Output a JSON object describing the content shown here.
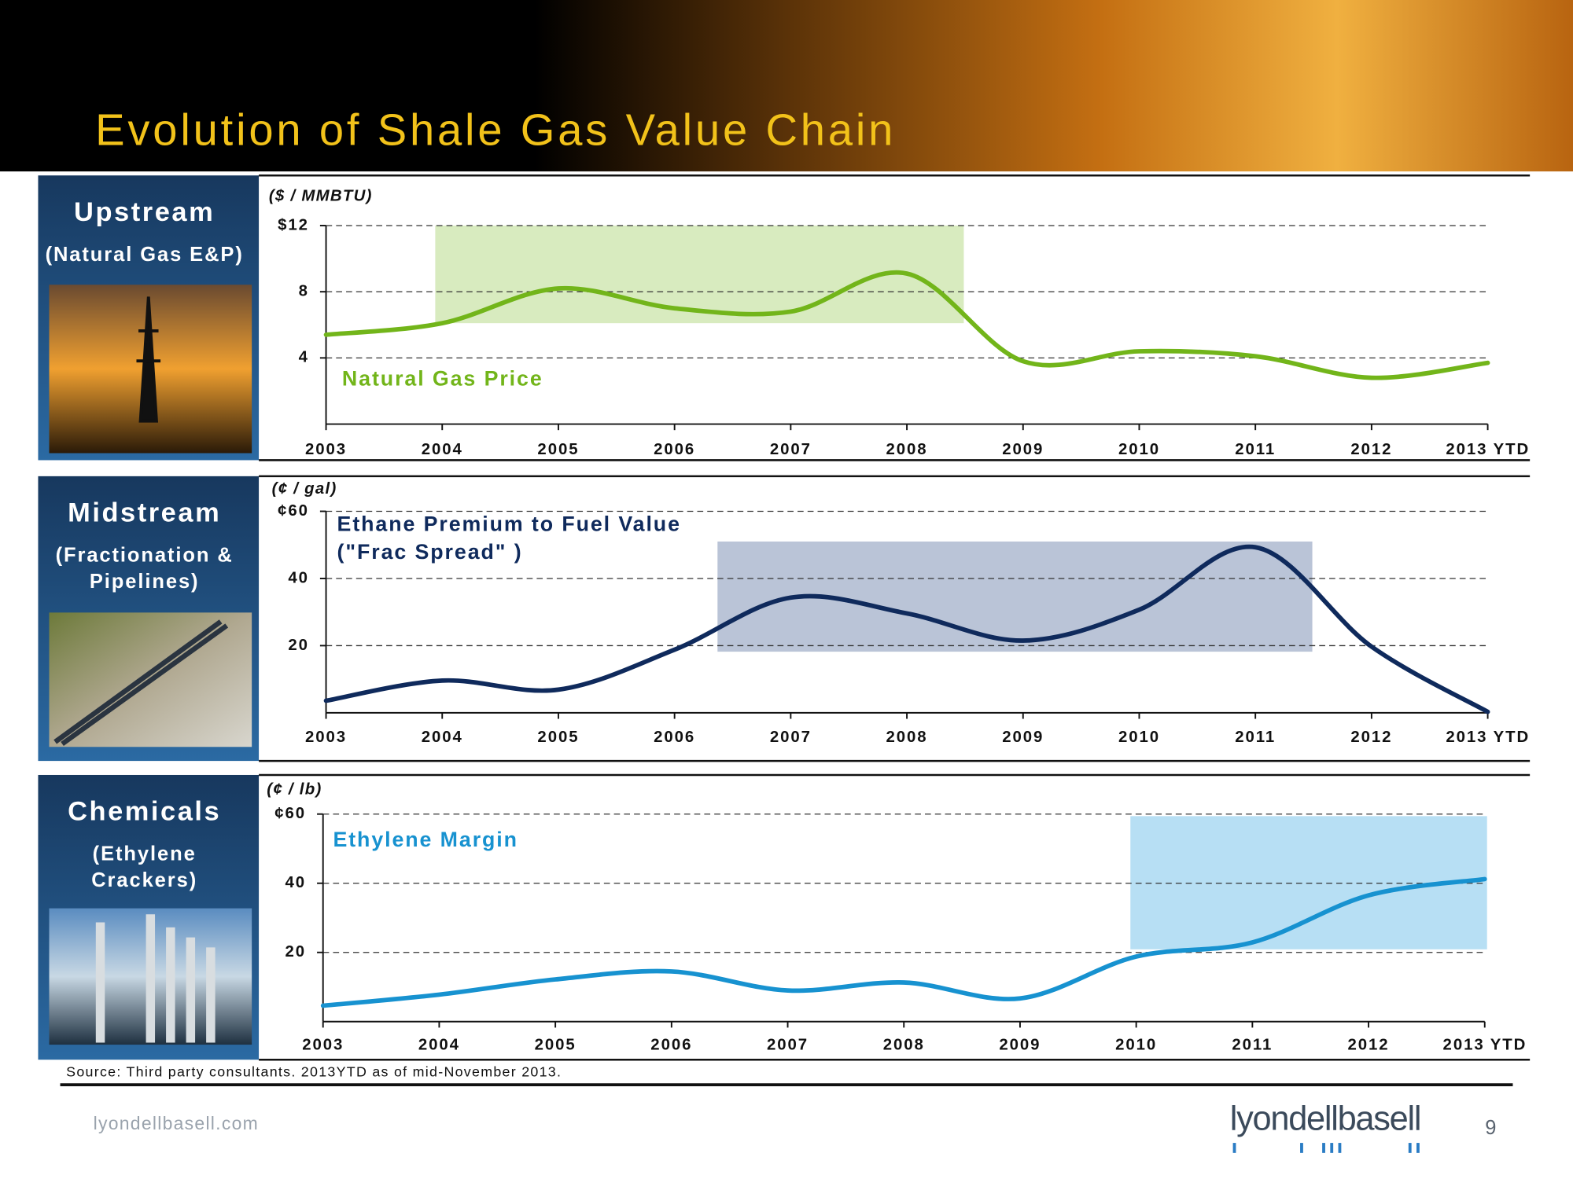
{
  "header": {
    "title": "Evolution of Shale Gas Value Chain"
  },
  "panels": [
    {
      "title": "Upstream",
      "subtitle": [
        "(Natural Gas E&P)"
      ]
    },
    {
      "title": "Midstream",
      "subtitle": [
        "(Fractionation &",
        "Pipelines)"
      ]
    },
    {
      "title": "Chemicals",
      "subtitle": [
        "(Ethylene",
        "Crackers)"
      ]
    }
  ],
  "chart_data": [
    {
      "type": "line",
      "unit_label": "($ / MMBTU)",
      "categories": [
        "2003",
        "2004",
        "2005",
        "2006",
        "2007",
        "2008",
        "2009",
        "2010",
        "2011",
        "2012",
        "2013 YTD"
      ],
      "series": [
        {
          "name": "Natural Gas Price",
          "color": "#72b51a",
          "values": [
            5.4,
            6.1,
            8.2,
            7.0,
            6.8,
            9.1,
            3.8,
            4.4,
            4.1,
            2.8,
            3.7
          ]
        }
      ],
      "ylim": [
        0,
        12
      ],
      "yticks": [
        4,
        8,
        {
          "value": 12,
          "label": "$12"
        }
      ],
      "grid": true,
      "highlight": {
        "x": [
          0.94,
          5.49
        ],
        "y": [
          6.1,
          12
        ],
        "color": "#d8ebbf"
      }
    },
    {
      "type": "line",
      "unit_label": "(¢ / gal)",
      "categories": [
        "2003",
        "2004",
        "2005",
        "2006",
        "2007",
        "2008",
        "2009",
        "2010",
        "2011",
        "2012",
        "2013 YTD"
      ],
      "series": [
        {
          "name": "Ethane Premium to Fuel Value",
          "color": "#0f2a5c",
          "values": [
            3.6,
            9.6,
            6.9,
            18.8,
            34.3,
            29.6,
            21.5,
            30.7,
            49.3,
            19.7,
            0.3
          ]
        }
      ],
      "annotation": "(\"Frac Spread\" )",
      "ylim": [
        0,
        60
      ],
      "yticks": [
        20,
        40,
        {
          "value": 60,
          "label": "¢60"
        }
      ],
      "grid": true,
      "highlight": {
        "x": [
          3.37,
          8.49
        ],
        "y": [
          18.2,
          51
        ],
        "color": "#bac4d7"
      }
    },
    {
      "type": "line",
      "unit_label": "(¢ / lb)",
      "categories": [
        "2003",
        "2004",
        "2005",
        "2006",
        "2007",
        "2008",
        "2009",
        "2010",
        "2011",
        "2012",
        "2013 YTD"
      ],
      "series": [
        {
          "name": "Ethylene Margin",
          "color": "#1792d0",
          "values": [
            4.6,
            7.8,
            12.2,
            14.5,
            9.0,
            11.3,
            6.7,
            18.8,
            22.9,
            36.5,
            41.2
          ]
        }
      ],
      "ylim": [
        0,
        60
      ],
      "yticks": [
        20,
        40,
        {
          "value": 60,
          "label": "¢60"
        }
      ],
      "grid": true,
      "highlight": {
        "x": [
          6.95,
          10.02
        ],
        "y": [
          20.9,
          59.4
        ],
        "color": "#b7dff4"
      }
    }
  ],
  "footer": {
    "source": "Source: Third party consultants.  2013YTD as of mid-November 2013.",
    "website": "lyondellbasell.com",
    "logo": "lyondellbasell",
    "page": 9
  }
}
